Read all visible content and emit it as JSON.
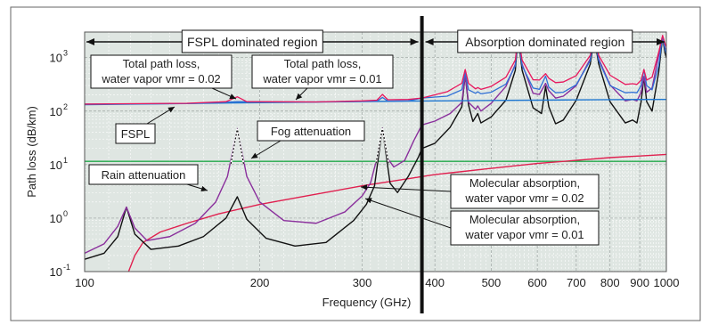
{
  "chart_data": {
    "type": "line",
    "xlabel": "Frequency (GHz)",
    "ylabel": "Path loss (dB/km)",
    "xscale": "log",
    "yscale": "log",
    "xlim": [
      100,
      1000
    ],
    "ylim": [
      0.1,
      3000
    ],
    "grid": true,
    "x_ticks": [
      {
        "value": 100,
        "label": "100"
      },
      {
        "value": 200,
        "label": "200"
      },
      {
        "value": 300,
        "label": "300"
      },
      {
        "value": 400,
        "label": "400"
      },
      {
        "value": 500,
        "label": "500"
      },
      {
        "value": 600,
        "label": "600"
      },
      {
        "value": 700,
        "label": "700"
      },
      {
        "value": 800,
        "label": "800"
      },
      {
        "value": 900,
        "label": "900"
      },
      {
        "value": 1000,
        "label": "1000"
      }
    ],
    "y_ticks": [
      {
        "value": 0.1,
        "base": "10",
        "exp": "-1"
      },
      {
        "value": 1,
        "base": "10",
        "exp": "0"
      },
      {
        "value": 10,
        "base": "10",
        "exp": "1"
      },
      {
        "value": 100,
        "base": "10",
        "exp": "2"
      },
      {
        "value": 1000,
        "base": "10",
        "exp": "3"
      }
    ],
    "boundary_frequency": 380,
    "regions": [
      {
        "label": "FSPL dominated region",
        "from": 100,
        "to": 380
      },
      {
        "label": "Absorption dominated region",
        "from": 380,
        "to": 1000
      }
    ],
    "colors": {
      "fspl": "#1f77d0",
      "total_002": "#e8175d",
      "total_001": "#2f6fd6",
      "mol_002": "#8a2f9c",
      "mol_001": "#111111",
      "fog": "#22a84a",
      "rain": "#e0204f",
      "plot_bg": "#dfe6e2"
    },
    "series": [
      {
        "key": "fspl",
        "points": [
          [
            100,
            132
          ],
          [
            200,
            144
          ],
          [
            300,
            151
          ],
          [
            400,
            155
          ],
          [
            500,
            158
          ],
          [
            600,
            160
          ],
          [
            700,
            162
          ],
          [
            800,
            163.5
          ],
          [
            900,
            164.5
          ],
          [
            1000,
            165
          ]
        ]
      },
      {
        "key": "fog",
        "points": [
          [
            100,
            11.5
          ],
          [
            1000,
            11.5
          ]
        ]
      },
      {
        "key": "rain",
        "points": [
          [
            119,
            0.1
          ],
          [
            122,
            0.2
          ],
          [
            126,
            0.35
          ],
          [
            135,
            0.55
          ],
          [
            150,
            0.8
          ],
          [
            170,
            1.2
          ],
          [
            200,
            1.8
          ],
          [
            250,
            2.8
          ],
          [
            300,
            4.0
          ],
          [
            400,
            6.5
          ],
          [
            500,
            8.5
          ],
          [
            600,
            10.5
          ],
          [
            700,
            12.0
          ],
          [
            800,
            13.5
          ],
          [
            900,
            14.5
          ],
          [
            1000,
            15.5
          ]
        ]
      },
      {
        "key": "mol_002",
        "points": [
          [
            100,
            0.22
          ],
          [
            108,
            0.33
          ],
          [
            114,
            0.7
          ],
          [
            118,
            1.6
          ],
          [
            122,
            0.65
          ],
          [
            128,
            0.38
          ],
          [
            140,
            0.45
          ],
          [
            155,
            0.8
          ],
          [
            168,
            2.0
          ],
          [
            176,
            6.0
          ],
          [
            183,
            47
          ],
          [
            190,
            6.0
          ],
          [
            200,
            2.0
          ],
          [
            220,
            0.9
          ],
          [
            250,
            0.8
          ],
          [
            280,
            1.3
          ],
          [
            300,
            2.6
          ],
          [
            310,
            4.5
          ],
          [
            318,
            13
          ],
          [
            325,
            48
          ],
          [
            332,
            13
          ],
          [
            340,
            9
          ],
          [
            355,
            12
          ],
          [
            368,
            28
          ],
          [
            380,
            55
          ],
          [
            400,
            65
          ],
          [
            425,
            90
          ],
          [
            445,
            145
          ],
          [
            451,
            470
          ],
          [
            457,
            145
          ],
          [
            470,
            108
          ],
          [
            474,
            125
          ],
          [
            480,
            100
          ],
          [
            500,
            140
          ],
          [
            530,
            290
          ],
          [
            550,
            750
          ],
          [
            556,
            2500
          ],
          [
            565,
            750
          ],
          [
            590,
            215
          ],
          [
            605,
            205
          ],
          [
            620,
            330
          ],
          [
            628,
            240
          ],
          [
            645,
            175
          ],
          [
            665,
            190
          ],
          [
            700,
            300
          ],
          [
            740,
            950
          ],
          [
            752,
            2400
          ],
          [
            765,
            950
          ],
          [
            800,
            310
          ],
          [
            850,
            155
          ],
          [
            875,
            165
          ],
          [
            890,
            155
          ],
          [
            905,
            225
          ],
          [
            915,
            440
          ],
          [
            925,
            225
          ],
          [
            945,
            270
          ],
          [
            970,
            1100
          ],
          [
            985,
            2400
          ],
          [
            995,
            1500
          ],
          [
            1000,
            1400
          ]
        ]
      },
      {
        "key": "mol_001",
        "points": [
          [
            100,
            0.17
          ],
          [
            108,
            0.22
          ],
          [
            114,
            0.45
          ],
          [
            118,
            1.6
          ],
          [
            122,
            0.5
          ],
          [
            130,
            0.26
          ],
          [
            145,
            0.3
          ],
          [
            160,
            0.45
          ],
          [
            175,
            1.0
          ],
          [
            183,
            2.5
          ],
          [
            190,
            0.95
          ],
          [
            205,
            0.42
          ],
          [
            230,
            0.3
          ],
          [
            260,
            0.35
          ],
          [
            290,
            0.9
          ],
          [
            305,
            1.8
          ],
          [
            315,
            4.0
          ],
          [
            325,
            48
          ],
          [
            335,
            4.5
          ],
          [
            345,
            3.0
          ],
          [
            360,
            6.0
          ],
          [
            375,
            14
          ],
          [
            380,
            20
          ],
          [
            400,
            25
          ],
          [
            425,
            50
          ],
          [
            445,
            120
          ],
          [
            451,
            470
          ],
          [
            457,
            130
          ],
          [
            465,
            64
          ],
          [
            474,
            90
          ],
          [
            480,
            60
          ],
          [
            500,
            78
          ],
          [
            530,
            160
          ],
          [
            550,
            580
          ],
          [
            556,
            2500
          ],
          [
            565,
            580
          ],
          [
            590,
            115
          ],
          [
            610,
            90
          ],
          [
            620,
            290
          ],
          [
            628,
            120
          ],
          [
            645,
            58
          ],
          [
            665,
            68
          ],
          [
            700,
            160
          ],
          [
            740,
            760
          ],
          [
            752,
            2400
          ],
          [
            765,
            760
          ],
          [
            800,
            150
          ],
          [
            850,
            60
          ],
          [
            875,
            68
          ],
          [
            890,
            60
          ],
          [
            905,
            150
          ],
          [
            915,
            440
          ],
          [
            925,
            150
          ],
          [
            945,
            100
          ],
          [
            970,
            530
          ],
          [
            985,
            2400
          ],
          [
            995,
            1200
          ],
          [
            1000,
            1000
          ]
        ]
      },
      {
        "key": "total_002",
        "points": [
          [
            100,
            135
          ],
          [
            150,
            140
          ],
          [
            175,
            150
          ],
          [
            183,
            185
          ],
          [
            190,
            150
          ],
          [
            250,
            148
          ],
          [
            300,
            155
          ],
          [
            318,
            160
          ],
          [
            325,
            205
          ],
          [
            332,
            163
          ],
          [
            360,
            165
          ],
          [
            380,
            175
          ],
          [
            420,
            230
          ],
          [
            445,
            330
          ],
          [
            451,
            600
          ],
          [
            457,
            330
          ],
          [
            470,
            260
          ],
          [
            474,
            275
          ],
          [
            480,
            255
          ],
          [
            500,
            290
          ],
          [
            530,
            430
          ],
          [
            550,
            900
          ],
          [
            556,
            2600
          ],
          [
            565,
            900
          ],
          [
            590,
            385
          ],
          [
            605,
            380
          ],
          [
            620,
            500
          ],
          [
            628,
            410
          ],
          [
            645,
            340
          ],
          [
            665,
            350
          ],
          [
            700,
            460
          ],
          [
            740,
            1100
          ],
          [
            752,
            2600
          ],
          [
            765,
            1100
          ],
          [
            800,
            470
          ],
          [
            850,
            315
          ],
          [
            875,
            325
          ],
          [
            890,
            315
          ],
          [
            905,
            380
          ],
          [
            915,
            600
          ],
          [
            925,
            380
          ],
          [
            945,
            430
          ],
          [
            970,
            1250
          ],
          [
            985,
            2600
          ],
          [
            995,
            1800
          ],
          [
            1000,
            1600
          ]
        ]
      },
      {
        "key": "total_001",
        "points": [
          [
            100,
            135
          ],
          [
            150,
            138
          ],
          [
            183,
            150
          ],
          [
            250,
            148
          ],
          [
            300,
            152
          ],
          [
            318,
            152
          ],
          [
            325,
            180
          ],
          [
            332,
            154
          ],
          [
            360,
            155
          ],
          [
            380,
            175
          ],
          [
            420,
            190
          ],
          [
            445,
            250
          ],
          [
            451,
            520
          ],
          [
            457,
            250
          ],
          [
            470,
            215
          ],
          [
            474,
            230
          ],
          [
            480,
            210
          ],
          [
            500,
            225
          ],
          [
            530,
            320
          ],
          [
            550,
            700
          ],
          [
            556,
            2550
          ],
          [
            565,
            700
          ],
          [
            590,
            270
          ],
          [
            605,
            255
          ],
          [
            620,
            450
          ],
          [
            628,
            280
          ],
          [
            645,
            220
          ],
          [
            665,
            225
          ],
          [
            700,
            310
          ],
          [
            740,
            880
          ],
          [
            752,
            2550
          ],
          [
            765,
            880
          ],
          [
            800,
            300
          ],
          [
            850,
            220
          ],
          [
            875,
            225
          ],
          [
            890,
            220
          ],
          [
            905,
            300
          ],
          [
            915,
            600
          ],
          [
            925,
            300
          ],
          [
            945,
            250
          ],
          [
            970,
            700
          ],
          [
            985,
            2550
          ],
          [
            995,
            1400
          ],
          [
            1000,
            1200
          ]
        ]
      }
    ],
    "annotations": [
      {
        "id": "total-002",
        "lines": [
          "Total path loss,",
          "water vapor vmr = 0.02"
        ]
      },
      {
        "id": "total-001",
        "lines": [
          "Total path loss,",
          "water vapor vmr = 0.01"
        ]
      },
      {
        "id": "fspl",
        "lines": [
          "FSPL"
        ]
      },
      {
        "id": "fog",
        "lines": [
          "Fog attenuation"
        ]
      },
      {
        "id": "rain",
        "lines": [
          "Rain attenuation"
        ]
      },
      {
        "id": "mol-002",
        "lines": [
          "Molecular absorption,",
          "water vapor vmr = 0.02"
        ]
      },
      {
        "id": "mol-001",
        "lines": [
          "Molecular absorption,",
          "water vapor vmr = 0.01"
        ]
      }
    ]
  }
}
